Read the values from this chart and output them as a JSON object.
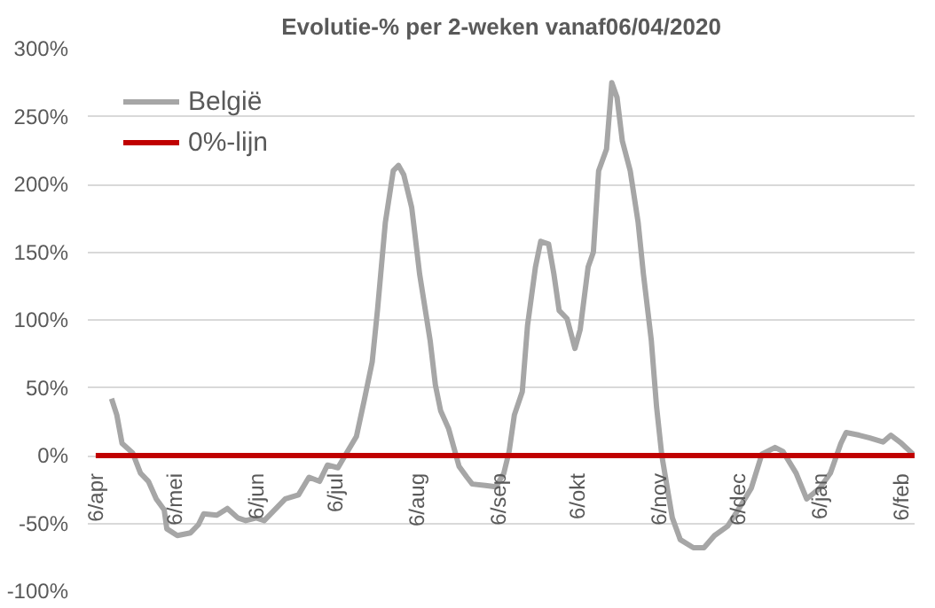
{
  "chart_data": {
    "type": "line",
    "title": "Evolutie-% per 2-weken vanaf06/04/2020",
    "xlim": [
      "2020-04-03",
      "2021-02-11"
    ],
    "xticks": [
      {
        "value": "2020-04-06",
        "label": "6/apr"
      },
      {
        "value": "2020-05-06",
        "label": "6/mei"
      },
      {
        "value": "2020-06-06",
        "label": "6/jun"
      },
      {
        "value": "2020-07-06",
        "label": "6/jul"
      },
      {
        "value": "2020-08-06",
        "label": "6/aug"
      },
      {
        "value": "2020-09-06",
        "label": "6/sep"
      },
      {
        "value": "2020-10-06",
        "label": "6/okt"
      },
      {
        "value": "2020-11-06",
        "label": "6/nov"
      },
      {
        "value": "2020-12-06",
        "label": "6/dec"
      },
      {
        "value": "2021-01-06",
        "label": "6/jan"
      },
      {
        "value": "2021-02-06",
        "label": "6/feb"
      }
    ],
    "ylim": [
      -100,
      300
    ],
    "yticks": [
      {
        "value": -100,
        "label": "-100%"
      },
      {
        "value": -50,
        "label": "-50%"
      },
      {
        "value": 0,
        "label": "0%"
      },
      {
        "value": 50,
        "label": "50%"
      },
      {
        "value": 100,
        "label": "100%"
      },
      {
        "value": 150,
        "label": "150%"
      },
      {
        "value": 200,
        "label": "200%"
      },
      {
        "value": 250,
        "label": "250%"
      },
      {
        "value": 300,
        "label": "300%"
      }
    ],
    "grid": "y",
    "legend": "top left",
    "marker": "none",
    "line_style": "solid",
    "series": [
      {
        "name": "België",
        "color": "#a6a6a6",
        "x": [
          "2020-04-12",
          "2020-04-14",
          "2020-04-16",
          "2020-04-20",
          "2020-04-23",
          "2020-04-26",
          "2020-04-29",
          "2020-05-02",
          "2020-05-03",
          "2020-05-07",
          "2020-05-12",
          "2020-05-15",
          "2020-05-17",
          "2020-05-22",
          "2020-05-26",
          "2020-05-30",
          "2020-06-02",
          "2020-06-06",
          "2020-06-09",
          "2020-06-13",
          "2020-06-17",
          "2020-06-22",
          "2020-06-26",
          "2020-06-30",
          "2020-07-03",
          "2020-07-07",
          "2020-07-10",
          "2020-07-14",
          "2020-07-17",
          "2020-07-20",
          "2020-07-22",
          "2020-07-25",
          "2020-07-28",
          "2020-07-30",
          "2020-08-01",
          "2020-08-04",
          "2020-08-05",
          "2020-08-07",
          "2020-08-11",
          "2020-08-13",
          "2020-08-15",
          "2020-08-18",
          "2020-08-22",
          "2020-08-25",
          "2020-08-27",
          "2020-09-01",
          "2020-09-05",
          "2020-09-08",
          "2020-09-10",
          "2020-09-12",
          "2020-09-15",
          "2020-09-17",
          "2020-09-20",
          "2020-09-22",
          "2020-09-25",
          "2020-09-27",
          "2020-09-29",
          "2020-10-02",
          "2020-10-05",
          "2020-10-07",
          "2020-10-10",
          "2020-10-12",
          "2020-10-14",
          "2020-10-17",
          "2020-10-19",
          "2020-10-21",
          "2020-10-23",
          "2020-10-26",
          "2020-10-29",
          "2020-10-31",
          "2020-11-03",
          "2020-11-05",
          "2020-11-07",
          "2020-11-11",
          "2020-11-14",
          "2020-11-19",
          "2020-11-23",
          "2020-11-27",
          "2020-12-02",
          "2020-12-06",
          "2020-12-11",
          "2020-12-15",
          "2020-12-20",
          "2020-12-23",
          "2020-12-28",
          "2021-01-01",
          "2021-01-06",
          "2021-01-10",
          "2021-01-14",
          "2021-01-16",
          "2021-01-21",
          "2021-01-25",
          "2021-01-30",
          "2021-02-02",
          "2021-02-06",
          "2021-02-11"
        ],
        "values": [
          42,
          30,
          9,
          2,
          -13,
          -19,
          -32,
          -40,
          -54,
          -59,
          -57,
          -51,
          -43,
          -44,
          -39,
          -46,
          -48,
          -46,
          -48,
          -40,
          -32,
          -29,
          -16,
          -19,
          -7,
          -9,
          1,
          14,
          41,
          69,
          107,
          172,
          210,
          214,
          207,
          183,
          167,
          134,
          85,
          52,
          33,
          20,
          -8,
          -16,
          -21,
          -22,
          -23,
          -13,
          3,
          30,
          47,
          96,
          139,
          158,
          156,
          134,
          107,
          101,
          79,
          93,
          139,
          150,
          210,
          226,
          275,
          264,
          232,
          210,
          172,
          134,
          85,
          36,
          0,
          -46,
          -62,
          -68,
          -68,
          -59,
          -52,
          -40,
          -24,
          1,
          6,
          3,
          -13,
          -32,
          -24,
          -13,
          9,
          17,
          15,
          13,
          10,
          15,
          9,
          0
        ]
      },
      {
        "name": "0%-lijn",
        "color": "#c00000",
        "x": [
          "2020-04-06",
          "2021-02-11"
        ],
        "values": [
          0,
          0
        ]
      }
    ]
  }
}
